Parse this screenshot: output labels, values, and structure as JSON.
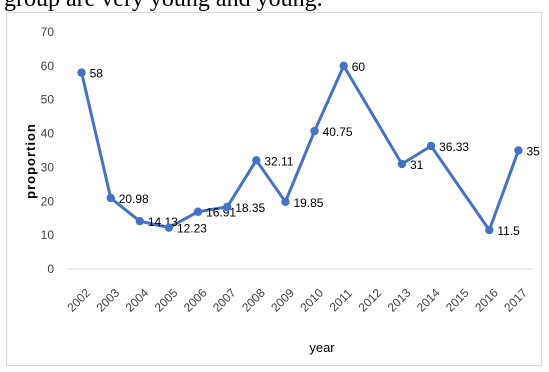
{
  "caption": {
    "text": "group are very young and young."
  },
  "chart_data": {
    "type": "line",
    "title": "",
    "xlabel": "year",
    "ylabel": "proportion",
    "ylim": [
      0,
      70
    ],
    "yticks": [
      0,
      10,
      20,
      30,
      40,
      50,
      60,
      70
    ],
    "grid": false,
    "legend": "none",
    "categories": [
      "2002",
      "2003",
      "2004",
      "2005",
      "2006",
      "2007",
      "2008",
      "2009",
      "2010",
      "2011",
      "2012",
      "2013",
      "2014",
      "2015",
      "2016",
      "2017"
    ],
    "series": [
      {
        "values": [
          58,
          20.98,
          14.13,
          12.23,
          16.91,
          18.35,
          32.11,
          19.85,
          40.75,
          60,
          null,
          31,
          36.33,
          null,
          11.5,
          35
        ],
        "labels": [
          "58",
          "20.98",
          "14.13",
          "12.23",
          "16.91",
          "18.35",
          "32.11",
          "19.85",
          "40.75",
          "60",
          "",
          "31",
          "36.33",
          "",
          "11.5",
          "35"
        ],
        "color": "#4472c4"
      }
    ]
  }
}
